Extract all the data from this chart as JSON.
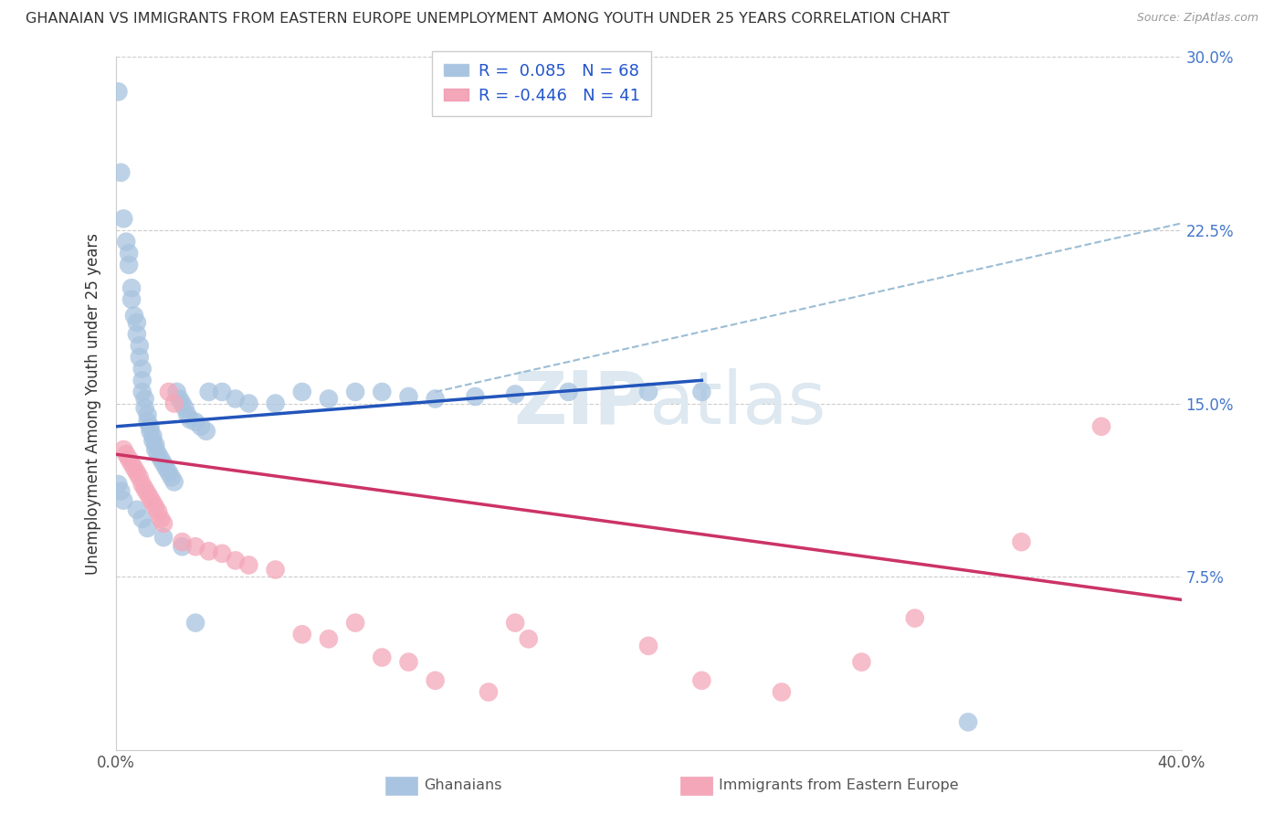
{
  "title": "GHANAIAN VS IMMIGRANTS FROM EASTERN EUROPE UNEMPLOYMENT AMONG YOUTH UNDER 25 YEARS CORRELATION CHART",
  "source": "Source: ZipAtlas.com",
  "ylabel": "Unemployment Among Youth under 25 years",
  "xlim": [
    0.0,
    0.4
  ],
  "ylim": [
    0.0,
    0.3
  ],
  "xticks": [
    0.0,
    0.1,
    0.2,
    0.3,
    0.4
  ],
  "xticklabels": [
    "0.0%",
    "",
    "",
    "",
    "40.0%"
  ],
  "yticks": [
    0.0,
    0.075,
    0.15,
    0.225,
    0.3
  ],
  "right_yticklabels": [
    "",
    "7.5%",
    "15.0%",
    "22.5%",
    "30.0%"
  ],
  "ghanaian_color": "#a8c4e0",
  "eastern_europe_color": "#f4a7b9",
  "ghanaian_line_color": "#2255bb",
  "eastern_europe_line_color": "#cc3366",
  "dashed_line_color": "#9bbdd4",
  "R_ghanaian": 0.085,
  "N_ghanaian": 68,
  "R_eastern": -0.446,
  "N_eastern": 41,
  "background_color": "#ffffff",
  "grid_color": "#cccccc",
  "ghanaian_x": [
    0.001,
    0.002,
    0.003,
    0.004,
    0.005,
    0.005,
    0.006,
    0.006,
    0.007,
    0.008,
    0.008,
    0.009,
    0.009,
    0.01,
    0.01,
    0.01,
    0.011,
    0.011,
    0.012,
    0.012,
    0.013,
    0.013,
    0.014,
    0.014,
    0.015,
    0.015,
    0.016,
    0.017,
    0.018,
    0.019,
    0.02,
    0.021,
    0.022,
    0.023,
    0.024,
    0.025,
    0.026,
    0.027,
    0.028,
    0.03,
    0.032,
    0.034,
    0.035,
    0.04,
    0.045,
    0.05,
    0.06,
    0.07,
    0.08,
    0.09,
    0.1,
    0.11,
    0.12,
    0.135,
    0.15,
    0.17,
    0.2,
    0.22,
    0.001,
    0.002,
    0.003,
    0.008,
    0.01,
    0.012,
    0.018,
    0.025,
    0.03,
    0.32
  ],
  "ghanaian_y": [
    0.285,
    0.25,
    0.23,
    0.22,
    0.215,
    0.21,
    0.2,
    0.195,
    0.188,
    0.185,
    0.18,
    0.175,
    0.17,
    0.165,
    0.16,
    0.155,
    0.152,
    0.148,
    0.145,
    0.142,
    0.14,
    0.138,
    0.136,
    0.134,
    0.132,
    0.13,
    0.128,
    0.126,
    0.124,
    0.122,
    0.12,
    0.118,
    0.116,
    0.155,
    0.152,
    0.15,
    0.148,
    0.145,
    0.143,
    0.142,
    0.14,
    0.138,
    0.155,
    0.155,
    0.152,
    0.15,
    0.15,
    0.155,
    0.152,
    0.155,
    0.155,
    0.153,
    0.152,
    0.153,
    0.154,
    0.155,
    0.155,
    0.155,
    0.115,
    0.112,
    0.108,
    0.104,
    0.1,
    0.096,
    0.092,
    0.088,
    0.055,
    0.012
  ],
  "eastern_x": [
    0.003,
    0.004,
    0.005,
    0.006,
    0.007,
    0.008,
    0.009,
    0.01,
    0.011,
    0.012,
    0.013,
    0.014,
    0.015,
    0.016,
    0.017,
    0.018,
    0.02,
    0.022,
    0.025,
    0.03,
    0.035,
    0.04,
    0.045,
    0.05,
    0.06,
    0.07,
    0.08,
    0.09,
    0.1,
    0.11,
    0.12,
    0.14,
    0.15,
    0.155,
    0.2,
    0.22,
    0.25,
    0.28,
    0.3,
    0.34,
    0.37
  ],
  "eastern_y": [
    0.13,
    0.128,
    0.126,
    0.124,
    0.122,
    0.12,
    0.118,
    0.115,
    0.113,
    0.111,
    0.109,
    0.107,
    0.105,
    0.103,
    0.1,
    0.098,
    0.155,
    0.15,
    0.09,
    0.088,
    0.086,
    0.085,
    0.082,
    0.08,
    0.078,
    0.05,
    0.048,
    0.055,
    0.04,
    0.038,
    0.03,
    0.025,
    0.055,
    0.048,
    0.045,
    0.03,
    0.025,
    0.038,
    0.057,
    0.09,
    0.14
  ],
  "ghanaian_trend": [
    0.0,
    0.22,
    0.14,
    0.16
  ],
  "eastern_trend": [
    0.0,
    0.4,
    0.128,
    0.065
  ],
  "dashed_trend": [
    0.12,
    0.4,
    0.155,
    0.228
  ]
}
